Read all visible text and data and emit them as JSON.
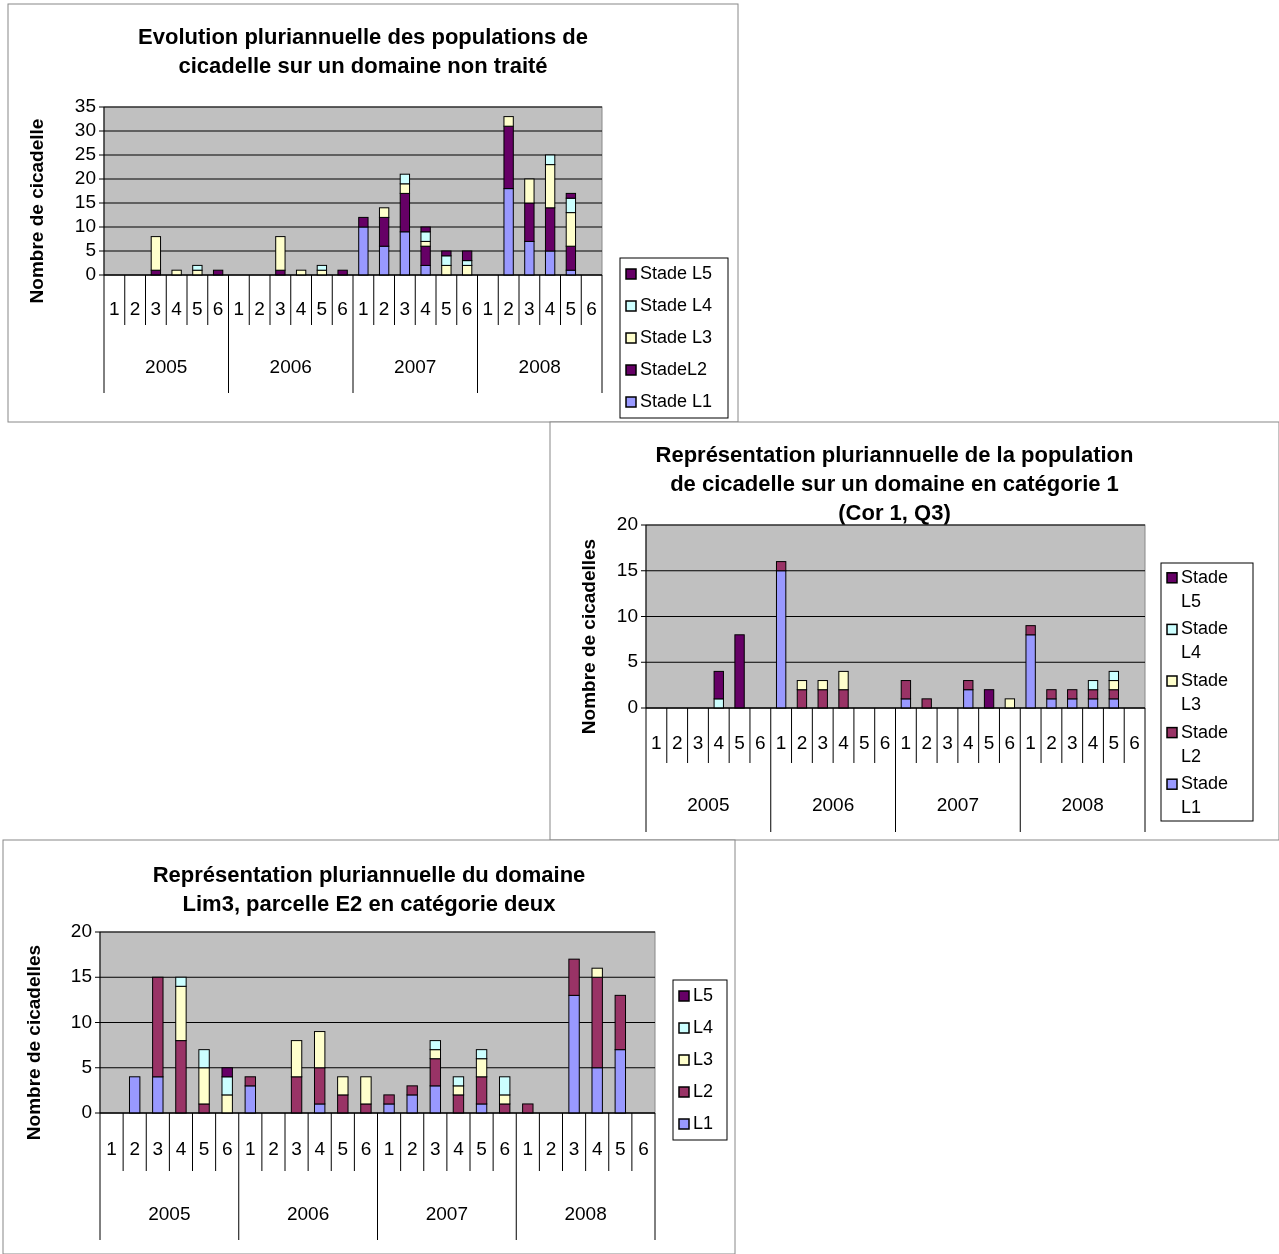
{
  "chart_data": [
    {
      "type": "bar",
      "stacked": true,
      "title": "Evolution pluriannuelle des populations de\ncicadelle sur un domaine non traité",
      "ylabel": "Nombre de cicadelle",
      "categories": [
        "1",
        "2",
        "3",
        "4",
        "5",
        "6",
        "1",
        "2",
        "3",
        "4",
        "5",
        "6",
        "1",
        "2",
        "3",
        "4",
        "5",
        "6",
        "1",
        "2",
        "3",
        "4",
        "5",
        "6"
      ],
      "annotations": [
        "2005",
        "2006",
        "2007",
        "2008"
      ],
      "ylim": [
        0,
        35
      ],
      "yticks": [
        0,
        5,
        10,
        15,
        20,
        25,
        30,
        35
      ],
      "grid": "y",
      "legend": "right",
      "series": [
        {
          "name": "Stade L1",
          "color": "#9999ff",
          "values": [
            0,
            0,
            0,
            0,
            0,
            0,
            0,
            0,
            0,
            0,
            0,
            0,
            10,
            6,
            9,
            2,
            0,
            0,
            0,
            18,
            7,
            5,
            1,
            0
          ]
        },
        {
          "name": "StadeL2",
          "color": "#660066",
          "values": [
            0,
            0,
            1,
            0,
            0,
            1,
            0,
            0,
            1,
            0,
            0,
            1,
            2,
            6,
            8,
            4,
            0,
            0,
            0,
            13,
            8,
            9,
            5,
            0
          ]
        },
        {
          "name": "Stade L3",
          "color": "#ffffcc",
          "values": [
            0,
            0,
            7,
            1,
            1,
            0,
            0,
            0,
            7,
            1,
            1,
            0,
            0,
            2,
            2,
            1,
            2,
            2,
            0,
            2,
            5,
            9,
            7,
            0
          ]
        },
        {
          "name": "Stade L4",
          "color": "#ccffff",
          "values": [
            0,
            0,
            0,
            0,
            1,
            0,
            0,
            0,
            0,
            0,
            1,
            0,
            0,
            0,
            2,
            2,
            2,
            1,
            0,
            0,
            0,
            2,
            3,
            0
          ]
        },
        {
          "name": "Stade L5",
          "color": "#660066",
          "values": [
            0,
            0,
            0,
            0,
            0,
            0,
            0,
            0,
            0,
            0,
            0,
            0,
            0,
            0,
            0,
            1,
            1,
            2,
            0,
            0,
            0,
            0,
            1,
            0
          ]
        }
      ]
    },
    {
      "type": "bar",
      "stacked": true,
      "title": "Représentation pluriannuelle de la population\nde cicadelle sur un domaine en catégorie 1\n(Cor 1, Q3)",
      "ylabel": "Nombre de cicadelles",
      "categories": [
        "1",
        "2",
        "3",
        "4",
        "5",
        "6",
        "1",
        "2",
        "3",
        "4",
        "5",
        "6",
        "1",
        "2",
        "3",
        "4",
        "5",
        "6",
        "1",
        "2",
        "3",
        "4",
        "5",
        "6"
      ],
      "annotations": [
        "2005",
        "2006",
        "2007",
        "2008"
      ],
      "ylim": [
        0,
        20
      ],
      "yticks": [
        0,
        5,
        10,
        15,
        20
      ],
      "grid": "y",
      "legend": "right",
      "series": [
        {
          "name": "Stade L1",
          "color": "#9999ff",
          "values": [
            0,
            0,
            0,
            0,
            0,
            0,
            15,
            0,
            0,
            0,
            0,
            0,
            1,
            0,
            0,
            2,
            0,
            0,
            8,
            1,
            1,
            1,
            1,
            0
          ]
        },
        {
          "name": "Stade L2",
          "color": "#993366",
          "values": [
            0,
            0,
            0,
            0,
            0,
            0,
            1,
            2,
            2,
            2,
            0,
            0,
            2,
            1,
            0,
            1,
            0,
            0,
            1,
            1,
            1,
            1,
            1,
            0
          ]
        },
        {
          "name": "Stade L3",
          "color": "#ffffcc",
          "values": [
            0,
            0,
            0,
            0,
            0,
            0,
            0,
            1,
            1,
            2,
            0,
            0,
            0,
            0,
            0,
            0,
            0,
            1,
            0,
            0,
            0,
            0,
            1,
            0
          ]
        },
        {
          "name": "Stade L4",
          "color": "#ccffff",
          "values": [
            0,
            0,
            0,
            1,
            0,
            0,
            0,
            0,
            0,
            0,
            0,
            0,
            0,
            0,
            0,
            0,
            0,
            0,
            0,
            0,
            0,
            1,
            1,
            0
          ]
        },
        {
          "name": "Stade L5",
          "color": "#660066",
          "values": [
            0,
            0,
            0,
            3,
            8,
            0,
            0,
            0,
            0,
            0,
            0,
            0,
            0,
            0,
            0,
            0,
            2,
            0,
            0,
            0,
            0,
            0,
            0,
            0
          ]
        }
      ]
    },
    {
      "type": "bar",
      "stacked": true,
      "title": "Représentation pluriannuelle du domaine\nLim3, parcelle E2 en catégorie deux",
      "ylabel": "Nombre de cicadelles",
      "categories": [
        "1",
        "2",
        "3",
        "4",
        "5",
        "6",
        "1",
        "2",
        "3",
        "4",
        "5",
        "6",
        "1",
        "2",
        "3",
        "4",
        "5",
        "6",
        "1",
        "2",
        "3",
        "4",
        "5",
        "6"
      ],
      "annotations": [
        "2005",
        "2006",
        "2007",
        "2008"
      ],
      "ylim": [
        0,
        20
      ],
      "yticks": [
        0,
        5,
        10,
        15,
        20
      ],
      "grid": "y",
      "legend": "center right",
      "series": [
        {
          "name": "L1",
          "color": "#9999ff",
          "values": [
            0,
            4,
            4,
            0,
            0,
            0,
            3,
            0,
            0,
            1,
            0,
            0,
            1,
            2,
            3,
            0,
            1,
            0,
            0,
            0,
            13,
            5,
            7,
            0
          ]
        },
        {
          "name": "L2",
          "color": "#993366",
          "values": [
            0,
            0,
            11,
            8,
            1,
            0,
            1,
            0,
            4,
            4,
            2,
            1,
            1,
            1,
            3,
            2,
            3,
            1,
            1,
            0,
            4,
            10,
            6,
            0
          ]
        },
        {
          "name": "L3",
          "color": "#ffffcc",
          "values": [
            0,
            0,
            0,
            6,
            4,
            2,
            0,
            0,
            4,
            4,
            2,
            3,
            0,
            0,
            1,
            1,
            2,
            1,
            0,
            0,
            0,
            1,
            0,
            0
          ]
        },
        {
          "name": "L4",
          "color": "#ccffff",
          "values": [
            0,
            0,
            0,
            1,
            2,
            2,
            0,
            0,
            0,
            0,
            0,
            0,
            0,
            0,
            1,
            1,
            1,
            2,
            0,
            0,
            0,
            0,
            0,
            0
          ]
        },
        {
          "name": "L5",
          "color": "#660066",
          "values": [
            0,
            0,
            0,
            0,
            0,
            1,
            0,
            0,
            0,
            0,
            0,
            0,
            0,
            0,
            0,
            0,
            0,
            0,
            0,
            0,
            0,
            0,
            0,
            0
          ]
        }
      ]
    }
  ]
}
